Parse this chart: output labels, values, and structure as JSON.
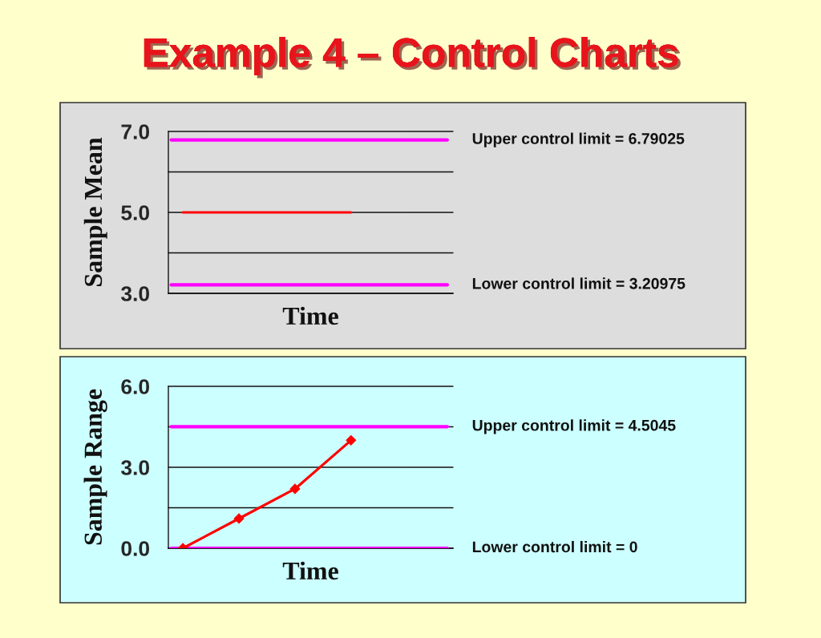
{
  "chart_data": [
    {
      "type": "line",
      "title": "Example 4 – Control Charts",
      "xlabel": "Time",
      "ylabel": "Sample Mean",
      "categories": [
        null,
        null,
        null,
        null
      ],
      "values": [
        5.0,
        5.0,
        5.0,
        5.0
      ],
      "color": "#ff0000",
      "ylim": [
        3,
        7
      ],
      "yticks": [
        {
          "value": 3,
          "label": "3.0"
        },
        {
          "value": 4,
          "label": null
        },
        {
          "value": 5,
          "label": "5.0"
        },
        {
          "value": 6,
          "label": null
        },
        {
          "value": 7,
          "label": "7.0"
        }
      ],
      "ref_lines": [
        {
          "axis": "y",
          "value": 6.79025,
          "label": "Upper control limit = 6.79025",
          "color": "#ff00ff"
        },
        {
          "axis": "y",
          "value": 3.20975,
          "label": "Lower control limit = 3.20975",
          "color": "#ff00ff"
        }
      ],
      "grid": "y",
      "tick_labels": "y"
    },
    {
      "type": "line",
      "xlabel": "Time",
      "ylabel": "Sample Range",
      "categories": [
        null,
        null,
        null,
        null
      ],
      "values": [
        0.0,
        1.1,
        2.2,
        4.0
      ],
      "color": "#ff0000",
      "marker": "diamond",
      "ylim": [
        0,
        6
      ],
      "yticks": [
        {
          "value": 0,
          "label": "0.0"
        },
        {
          "value": 1.5,
          "label": null
        },
        {
          "value": 3,
          "label": "3.0"
        },
        {
          "value": 4.5,
          "label": null
        },
        {
          "value": 6,
          "label": "6.0"
        }
      ],
      "ref_lines": [
        {
          "axis": "y",
          "value": 4.5045,
          "label": "Upper control limit = 4.5045",
          "color": "#ff00ff"
        },
        {
          "axis": "y",
          "value": 0,
          "label": "Lower control limit = 0",
          "color": "#ff00ff"
        }
      ],
      "grid": "y",
      "tick_labels": "y"
    }
  ]
}
